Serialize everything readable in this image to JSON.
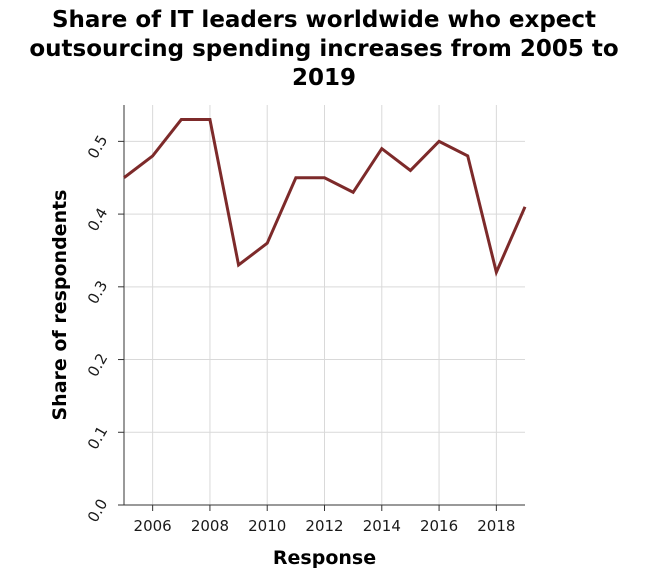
{
  "chart_data": {
    "type": "line",
    "title": "Share of IT leaders worldwide who expect outsourcing spending increases from 2005 to 2019",
    "xlabel": "Response",
    "ylabel": "Share of respondents",
    "x": [
      2005,
      2006,
      2007,
      2008,
      2009,
      2010,
      2011,
      2012,
      2013,
      2014,
      2015,
      2016,
      2017,
      2018,
      2019
    ],
    "series": [
      {
        "values": [
          0.45,
          0.48,
          0.53,
          0.53,
          0.33,
          0.36,
          0.45,
          0.45,
          0.43,
          0.49,
          0.46,
          0.5,
          0.48,
          0.32,
          0.41
        ]
      }
    ],
    "xlim": [
      2005,
      2019
    ],
    "ylim": [
      0,
      0.55
    ],
    "xticks": [
      2006,
      2008,
      2010,
      2012,
      2014,
      2016,
      2018
    ],
    "xtick_labels": [
      "2006",
      "2008",
      "2010",
      "2012",
      "2014",
      "2016",
      "2018"
    ],
    "yticks": [
      0.0,
      0.1,
      0.2,
      0.3,
      0.4,
      0.5
    ],
    "ytick_labels": [
      "0.0",
      "0.1",
      "0.2",
      "0.3",
      "0.4",
      "0.5"
    ],
    "grid": true,
    "line_color": "#7d2a2a"
  }
}
